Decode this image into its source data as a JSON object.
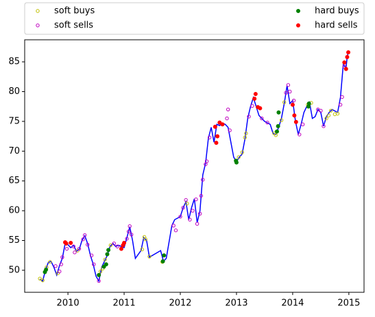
{
  "chart_data": {
    "type": "line",
    "xlim": [
      2009.23,
      2015.27
    ],
    "ylim": [
      46.3,
      88.7
    ],
    "xticks": [
      2010,
      2011,
      2012,
      2013,
      2014,
      2015
    ],
    "yticks": [
      50,
      55,
      60,
      65,
      70,
      75,
      80,
      85
    ],
    "legend": "top",
    "legend_columns": 2,
    "line": {
      "color": "#0000ff",
      "x": [
        2009.5,
        2009.55,
        2009.6,
        2009.65,
        2009.7,
        2009.75,
        2009.8,
        2009.85,
        2009.9,
        2009.95,
        2010.0,
        2010.05,
        2010.1,
        2010.15,
        2010.2,
        2010.25,
        2010.3,
        2010.35,
        2010.4,
        2010.45,
        2010.5,
        2010.55,
        2010.6,
        2010.65,
        2010.7,
        2010.75,
        2010.8,
        2010.85,
        2010.9,
        2011.0,
        2011.05,
        2011.1,
        2011.15,
        2011.2,
        2011.3,
        2011.35,
        2011.4,
        2011.45,
        2011.65,
        2011.7,
        2011.75,
        2011.85,
        2011.9,
        2012.0,
        2012.05,
        2012.1,
        2012.15,
        2012.2,
        2012.25,
        2012.3,
        2012.35,
        2012.4,
        2012.45,
        2012.5,
        2012.55,
        2012.6,
        2012.65,
        2012.7,
        2012.75,
        2012.8,
        2012.85,
        2012.9,
        2012.95,
        2013.0,
        2013.05,
        2013.1,
        2013.15,
        2013.2,
        2013.25,
        2013.3,
        2013.35,
        2013.4,
        2013.5,
        2013.6,
        2013.65,
        2013.7,
        2013.75,
        2013.8,
        2013.85,
        2013.9,
        2013.95,
        2014.0,
        2014.05,
        2014.1,
        2014.15,
        2014.2,
        2014.25,
        2014.3,
        2014.35,
        2014.4,
        2014.45,
        2014.5,
        2014.55,
        2014.6,
        2014.65,
        2014.7,
        2014.8,
        2014.85,
        2014.9,
        2014.95,
        2014.97,
        2014.99
      ],
      "values": [
        48.5,
        48.2,
        50,
        51.3,
        51.5,
        50.5,
        49.2,
        50.8,
        52,
        54.5,
        54.3,
        53.8,
        54.2,
        53.2,
        53.5,
        55,
        55.8,
        54.5,
        52.5,
        51,
        49,
        48.2,
        50.5,
        51.5,
        52.5,
        54,
        54.5,
        54,
        54.2,
        53.8,
        55.5,
        57.3,
        55,
        52,
        53.3,
        55.5,
        55,
        52.2,
        53.3,
        51.5,
        52,
        57.5,
        58.5,
        59,
        60.5,
        61.5,
        58.5,
        60.5,
        62,
        58,
        60,
        66,
        68,
        72.2,
        74,
        71.5,
        74.5,
        74.3,
        74.7,
        74.5,
        74,
        71.5,
        69,
        68.2,
        69,
        69.5,
        72,
        75.5,
        77.5,
        79,
        77.5,
        76,
        75,
        74.5,
        73,
        72.8,
        74,
        75.5,
        78,
        81,
        78,
        78.5,
        75,
        72.8,
        74.5,
        76.5,
        77.5,
        78.2,
        75.5,
        75.8,
        77,
        76.5,
        74.2,
        75.8,
        76.5,
        77,
        76.5,
        79,
        84.5,
        84,
        85.8,
        86.7
      ]
    },
    "series": [
      {
        "name": "soft buys",
        "color": "#bfbf00",
        "marker": "hollow",
        "x": [
          2009.5,
          2009.55,
          2009.62,
          2009.68,
          2009.82,
          2010.17,
          2010.58,
          2010.62,
          2010.66,
          2010.76,
          2011.32,
          2011.36,
          2011.38,
          2011.45,
          2011.68,
          2012.12,
          2013.04,
          2013.1,
          2013.15,
          2013.17,
          2013.67,
          2013.7,
          2013.8,
          2013.85,
          2014.27,
          2014.33,
          2014.6,
          2014.64,
          2014.68,
          2014.75,
          2014.8
        ],
        "values": [
          48.6,
          48.3,
          50.5,
          51.4,
          49.5,
          53.3,
          49.8,
          50.3,
          51.8,
          54.2,
          53.5,
          55.6,
          55.2,
          52.3,
          51.4,
          61.2,
          69,
          69.8,
          72.3,
          73,
          73,
          72.7,
          75.2,
          78.2,
          77.8,
          78.1,
          75.5,
          76,
          76.8,
          76.2,
          76.3
        ]
      },
      {
        "name": "soft sells",
        "color": "#bf00bf",
        "marker": "hollow",
        "x": [
          2009.78,
          2009.85,
          2009.88,
          2009.9,
          2009.98,
          2010.1,
          2010.12,
          2010.2,
          2010.27,
          2010.3,
          2010.35,
          2010.42,
          2010.46,
          2010.55,
          2010.82,
          2010.88,
          2011.05,
          2011.08,
          2011.1,
          2011.13,
          2011.88,
          2011.92,
          2012.0,
          2012.05,
          2012.1,
          2012.17,
          2012.22,
          2012.28,
          2012.3,
          2012.35,
          2012.37,
          2012.4,
          2012.45,
          2012.47,
          2012.52,
          2012.83,
          2012.85,
          2012.88,
          2013.22,
          2013.28,
          2013.45,
          2013.55,
          2013.88,
          2013.92,
          2013.95,
          2014.02,
          2014.12,
          2014.18,
          2014.45,
          2014.5,
          2014.55,
          2014.85,
          2014.88,
          2014.92
        ],
        "values": [
          50.7,
          49.8,
          51,
          52.2,
          53.6,
          54,
          53,
          53.6,
          55.2,
          55.9,
          54.3,
          52.5,
          51,
          48.2,
          54.5,
          54,
          55.3,
          56.5,
          57.4,
          56,
          57.5,
          56.7,
          59,
          60.5,
          61.8,
          58.5,
          60,
          61.9,
          57.8,
          59.5,
          62.5,
          65.2,
          67.8,
          68.3,
          72.3,
          75.5,
          77,
          73.5,
          75.8,
          77.6,
          75.5,
          74.8,
          79.8,
          81.1,
          80,
          78.5,
          72.8,
          74.5,
          77,
          76.8,
          74.2,
          77.8,
          79.1,
          84.2
        ]
      },
      {
        "name": "hard buys",
        "color": "#008000",
        "marker": "filled",
        "x": [
          2009.59,
          2009.61,
          2010.55,
          2010.64,
          2010.68,
          2010.7,
          2010.72,
          2011.69,
          2011.71,
          2012.99,
          2013.0,
          2013.72,
          2013.74,
          2013.75,
          2014.28,
          2014.29
        ],
        "values": [
          49.7,
          50.1,
          49.2,
          50.6,
          51,
          52.7,
          53.4,
          51.5,
          52.5,
          68.4,
          68.1,
          73.3,
          74.2,
          76.5,
          77.5,
          78
        ]
      },
      {
        "name": "hard sells",
        "color": "#ff0000",
        "marker": "filled",
        "x": [
          2009.95,
          2009.97,
          2010.05,
          2010.95,
          2010.98,
          2011.0,
          2012.62,
          2012.64,
          2012.66,
          2012.7,
          2012.75,
          2013.32,
          2013.34,
          2013.38,
          2013.42,
          2014.0,
          2014.03,
          2014.06,
          2014.92,
          2014.95,
          2014.97,
          2014.99
        ],
        "values": [
          54.7,
          54.5,
          54.6,
          53.6,
          54.2,
          54.6,
          74.1,
          71.4,
          72.5,
          74.8,
          74.5,
          78.8,
          79.6,
          77.4,
          77.2,
          77.8,
          76,
          74.9,
          84.9,
          83.8,
          85.8,
          86.6
        ]
      }
    ]
  }
}
